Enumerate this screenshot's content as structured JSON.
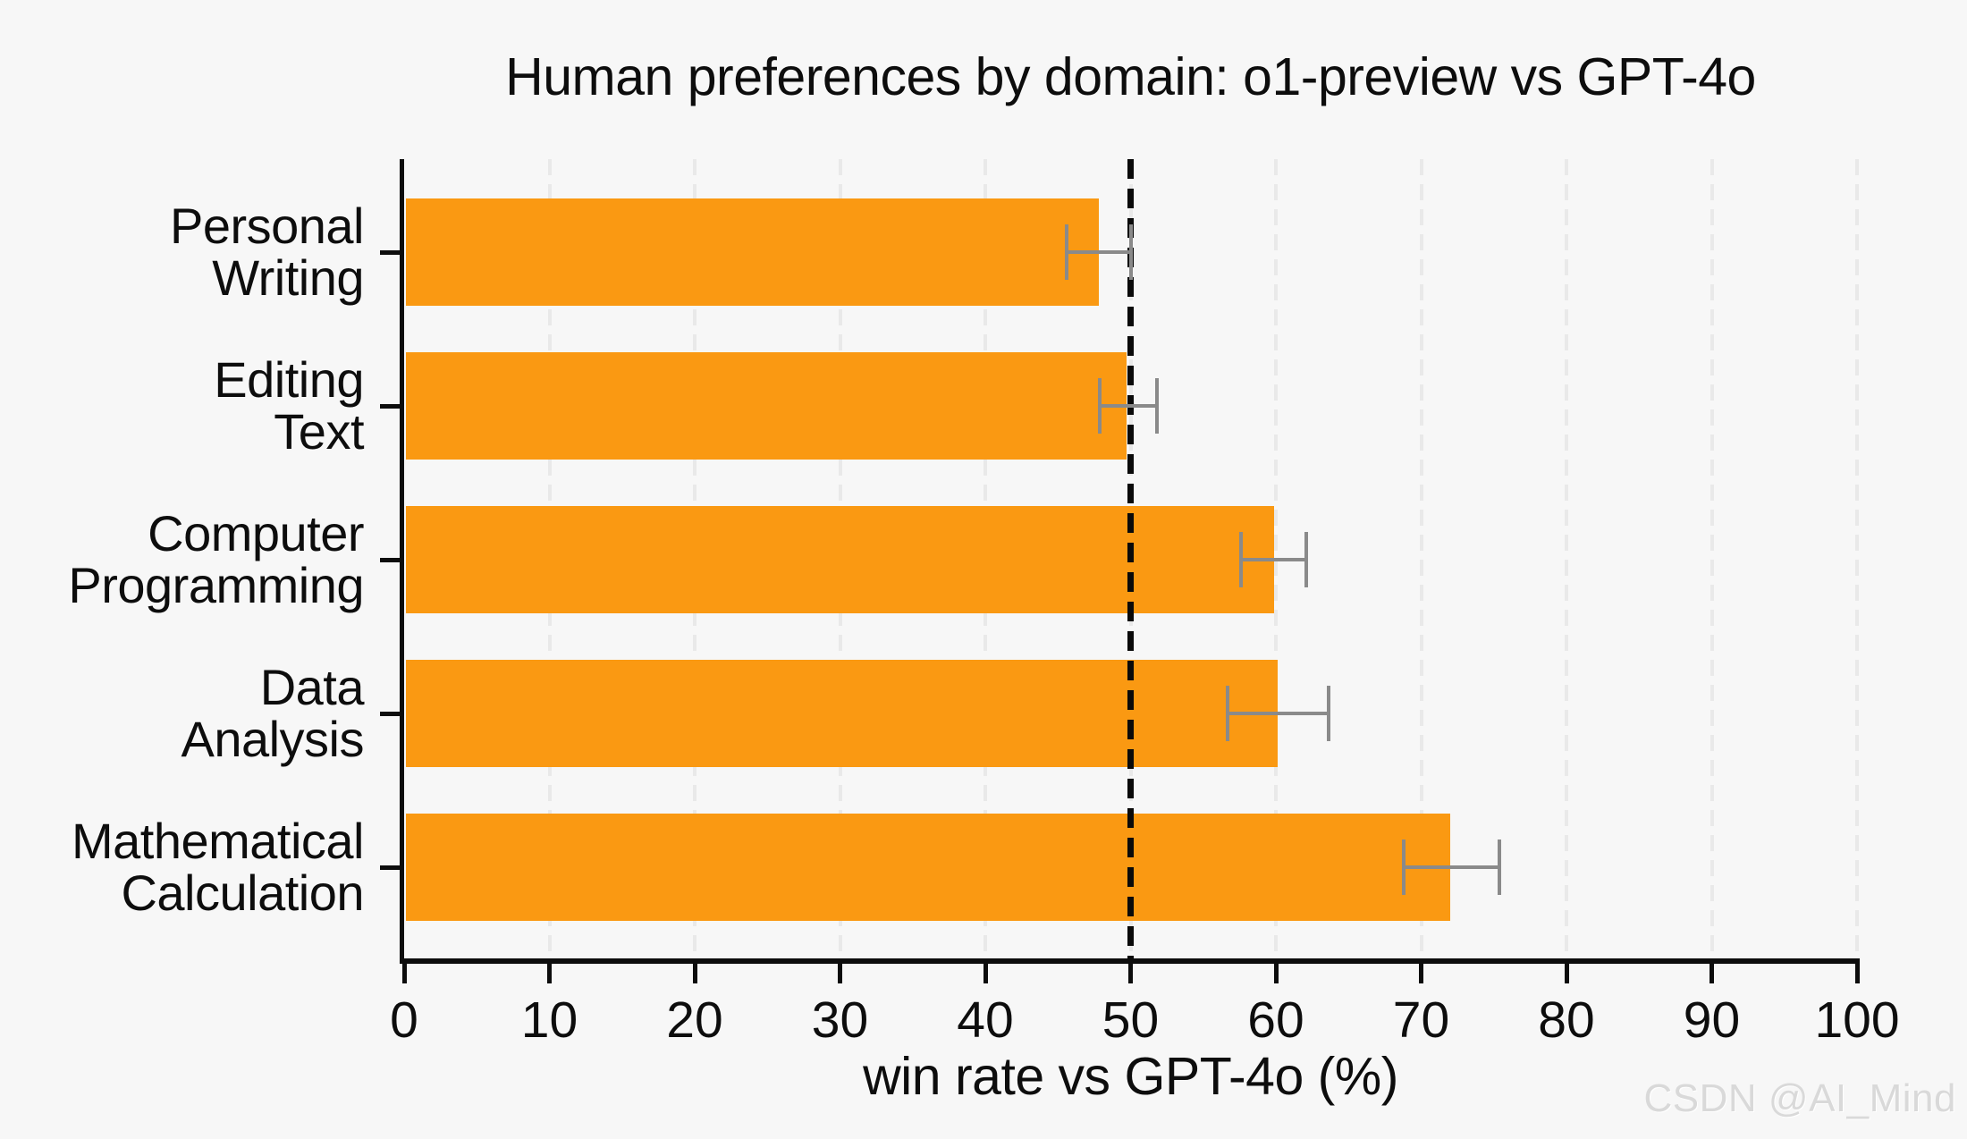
{
  "watermark": {
    "text": "CSDN @AI_Mind"
  },
  "chart_data": {
    "type": "bar",
    "orientation": "horizontal",
    "title": "Human preferences by domain: o1-preview vs GPT-4o",
    "xlabel": "win rate vs GPT-4o (%)",
    "xlim": [
      0,
      100
    ],
    "xticks": [
      0,
      10,
      20,
      30,
      40,
      50,
      60,
      70,
      80,
      90,
      100
    ],
    "grid": {
      "axis": "x",
      "style": "dashed",
      "color": "#e9e9e9"
    },
    "reference_line": {
      "x": 50,
      "style": "dashed",
      "color": "#0a0a0a"
    },
    "background_color": "#f7f7f7",
    "bar_color": "#FA9912",
    "error_color": "#8a8a8a",
    "axis_color": "#0d0d0d",
    "legend": "none",
    "categories": [
      "Personal Writing",
      "Editing Text",
      "Computer Programming",
      "Data Analysis",
      "Mathematical Calculation"
    ],
    "category_lines": [
      [
        "Personal",
        "Writing"
      ],
      [
        "Editing",
        "Text"
      ],
      [
        "Computer",
        "Programming"
      ],
      [
        "Data",
        "Analysis"
      ],
      [
        "Mathematical",
        "Calculation"
      ]
    ],
    "series": [
      {
        "name": "o1-preview win rate vs GPT-4o (%)",
        "values": [
          47.8,
          49.7,
          59.9,
          60.1,
          72.0
        ],
        "error_low": [
          45.6,
          47.9,
          57.6,
          56.7,
          68.8
        ],
        "error_high": [
          50.0,
          51.8,
          62.1,
          63.6,
          75.4
        ]
      }
    ]
  }
}
